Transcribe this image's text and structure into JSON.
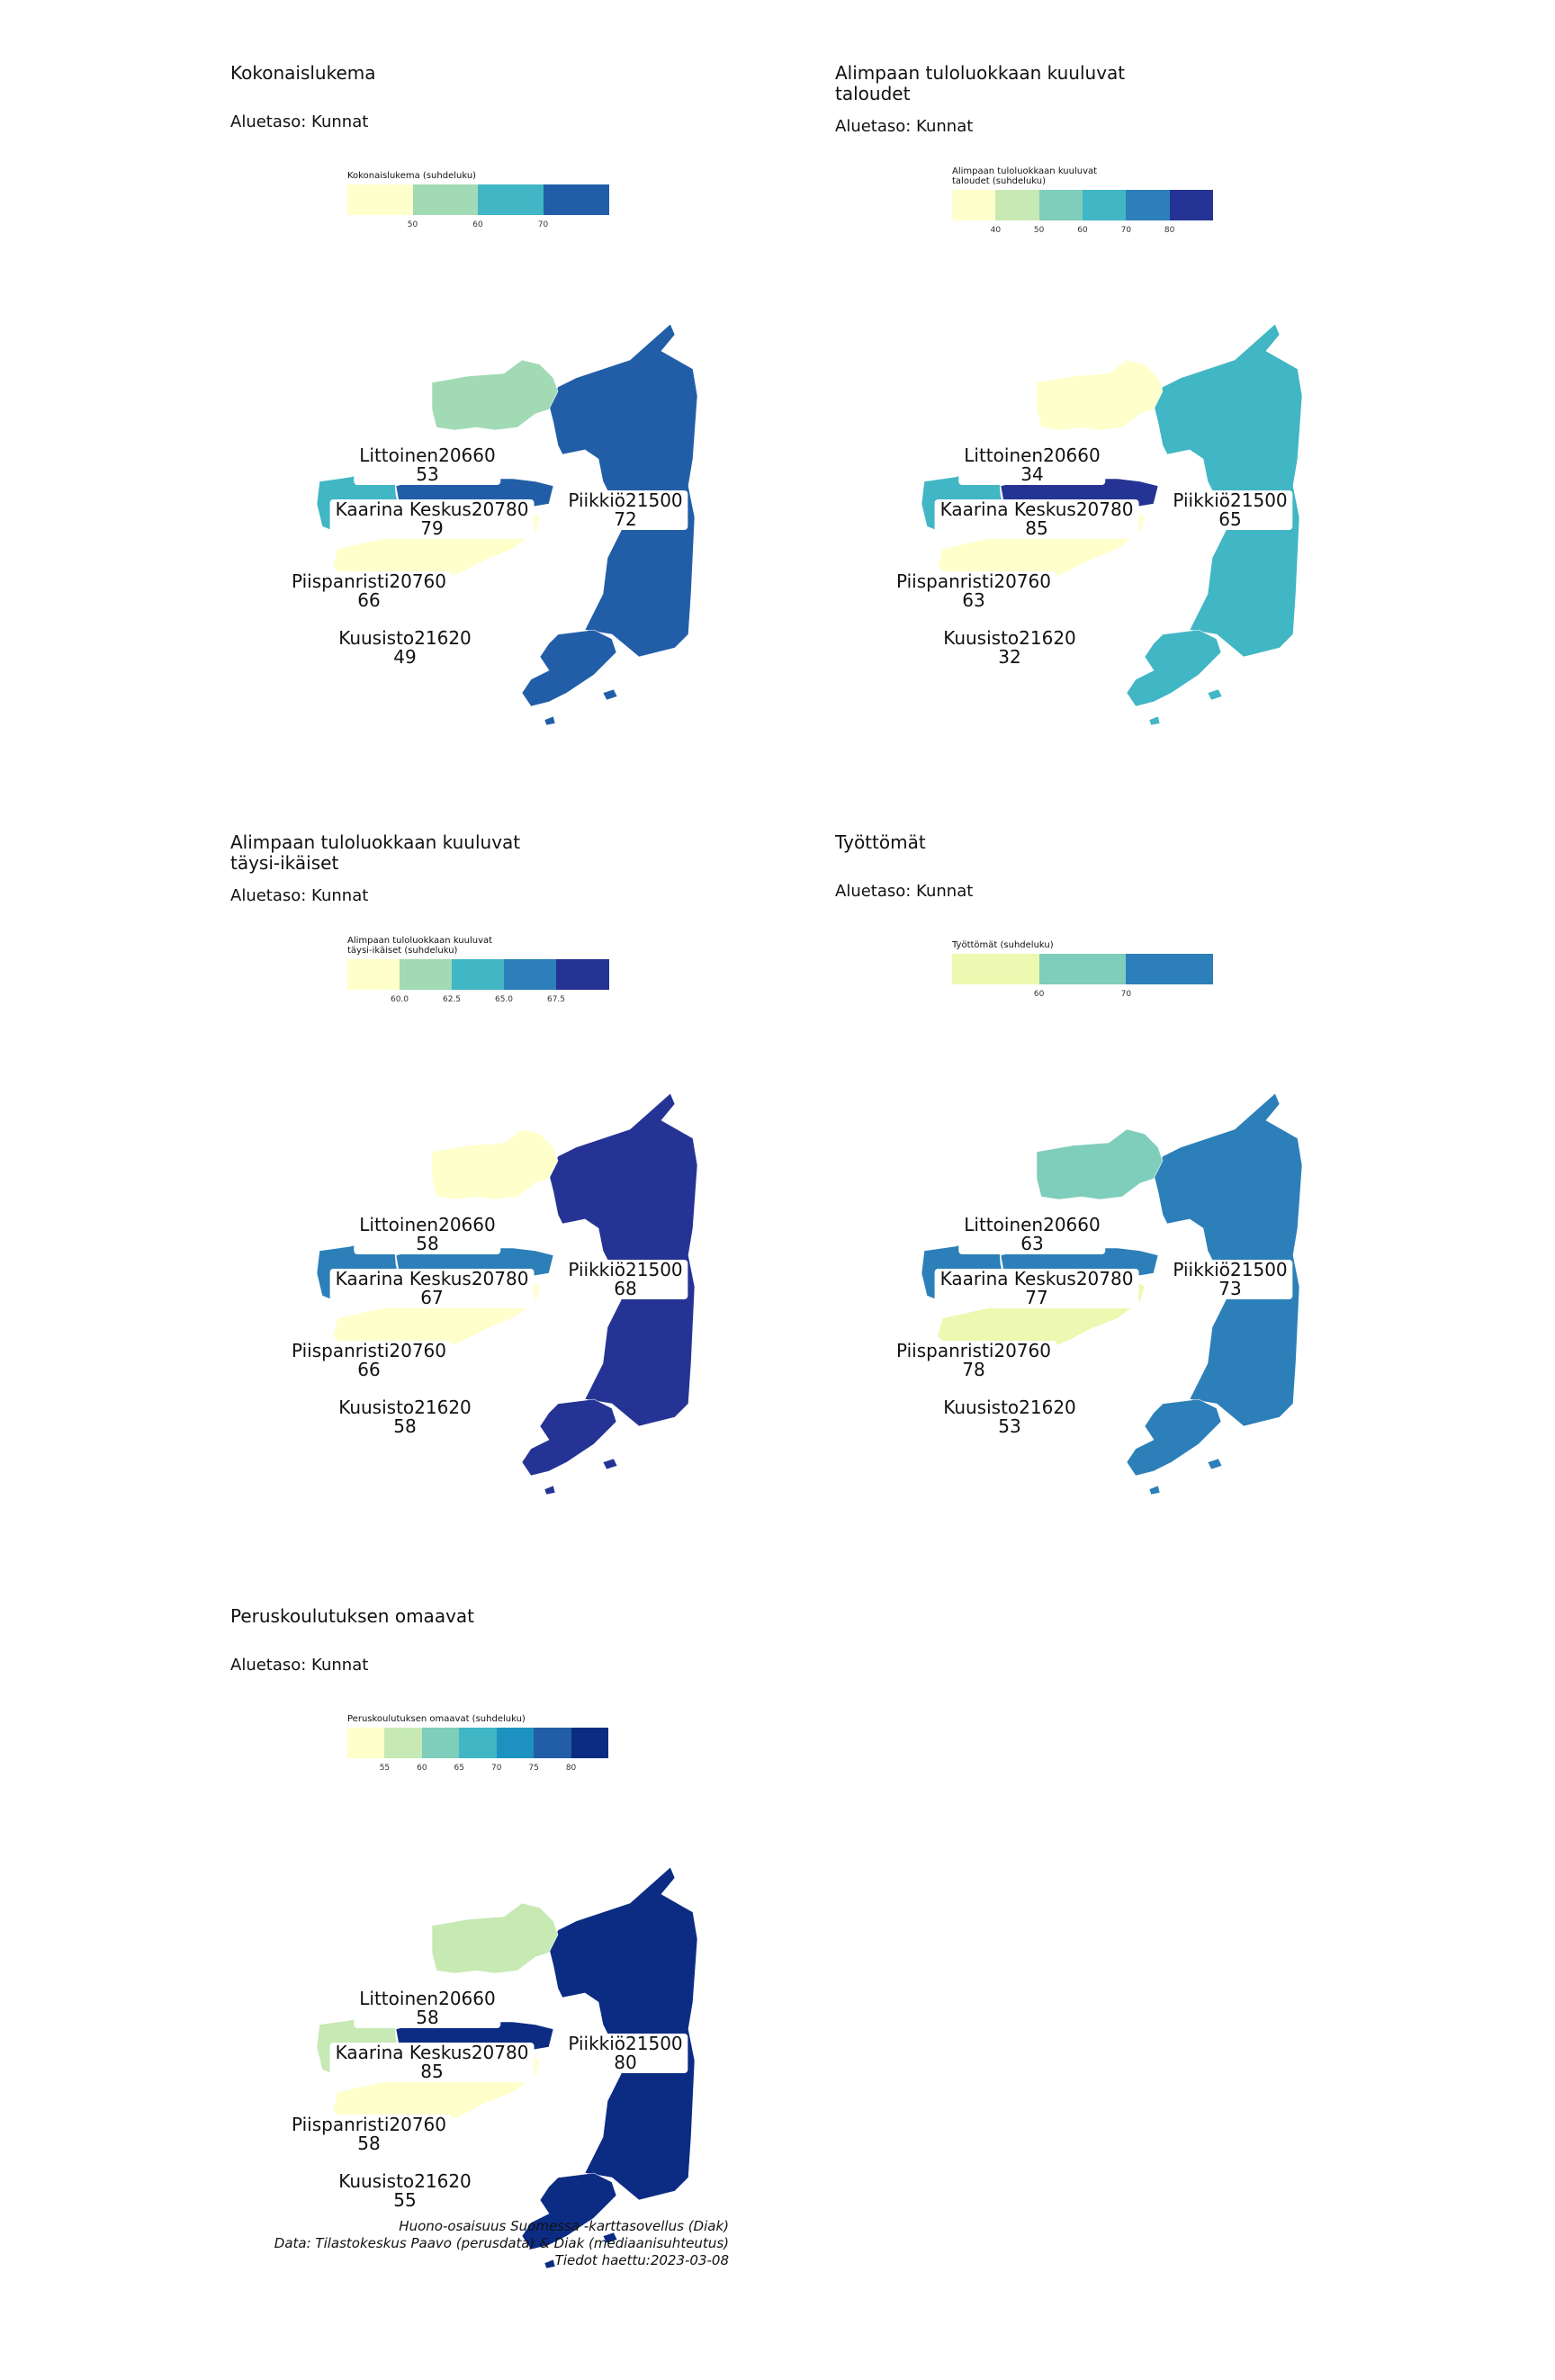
{
  "aluetaso_label": "Aluetaso: Kunnat",
  "panels": [
    {
      "title": "Kokonaislukema",
      "legend_title": "Kokonaislukema (suhdeluku)",
      "legend_colors": [
        "#ffffcc",
        "#a1dab4",
        "#41b6c4",
        "#225ea8"
      ],
      "legend_ticks": [
        "50",
        "60",
        "70"
      ],
      "regions": [
        {
          "name": "Littoinen20660",
          "value": "53",
          "color": "#a1dab4"
        },
        {
          "name": "Kaarina Keskus20780",
          "value": "79",
          "color": "#225ea8"
        },
        {
          "name": "Piikkiö21500",
          "value": "72",
          "color": "#225ea8"
        },
        {
          "name": "Piispanristi20760",
          "value": "66",
          "color": "#41b6c4"
        },
        {
          "name": "Kuusisto21620",
          "value": "49",
          "color": "#ffffcc"
        }
      ]
    },
    {
      "title": "Alimpaan tuloluokkaan kuuluvat\ntaloudet",
      "legend_title": "Alimpaan tuloluokkaan kuuluvat\ntaloudet (suhdeluku)",
      "legend_colors": [
        "#ffffcc",
        "#c7e9b4",
        "#7fcdbb",
        "#41b6c4",
        "#2c7fb8",
        "#253494"
      ],
      "legend_ticks": [
        "40",
        "50",
        "60",
        "70",
        "80"
      ],
      "regions": [
        {
          "name": "Littoinen20660",
          "value": "34",
          "color": "#ffffcc"
        },
        {
          "name": "Kaarina Keskus20780",
          "value": "85",
          "color": "#253494"
        },
        {
          "name": "Piikkiö21500",
          "value": "65",
          "color": "#41b6c4"
        },
        {
          "name": "Piispanristi20760",
          "value": "63",
          "color": "#41b6c4"
        },
        {
          "name": "Kuusisto21620",
          "value": "32",
          "color": "#ffffcc"
        }
      ]
    },
    {
      "title": "Alimpaan tuloluokkaan kuuluvat\ntäysi-ikäiset",
      "legend_title": "Alimpaan tuloluokkaan kuuluvat\ntäysi-ikäiset (suhdeluku)",
      "legend_colors": [
        "#ffffcc",
        "#a1dab4",
        "#41b6c4",
        "#2c7fb8",
        "#253494"
      ],
      "legend_ticks": [
        "60.0",
        "62.5",
        "65.0",
        "67.5"
      ],
      "regions": [
        {
          "name": "Littoinen20660",
          "value": "58",
          "color": "#ffffcc"
        },
        {
          "name": "Kaarina Keskus20780",
          "value": "67",
          "color": "#2c7fb8"
        },
        {
          "name": "Piikkiö21500",
          "value": "68",
          "color": "#253494"
        },
        {
          "name": "Piispanristi20760",
          "value": "66",
          "color": "#2c7fb8"
        },
        {
          "name": "Kuusisto21620",
          "value": "58",
          "color": "#ffffcc"
        }
      ]
    },
    {
      "title": "Työttömät",
      "legend_title": "Työttömät (suhdeluku)",
      "legend_colors": [
        "#edf8b1",
        "#7fcdbb",
        "#2c7fb8"
      ],
      "legend_ticks": [
        "60",
        "70"
      ],
      "regions": [
        {
          "name": "Littoinen20660",
          "value": "63",
          "color": "#7fcdbb"
        },
        {
          "name": "Kaarina Keskus20780",
          "value": "77",
          "color": "#2c7fb8"
        },
        {
          "name": "Piikkiö21500",
          "value": "73",
          "color": "#2c7fb8"
        },
        {
          "name": "Piispanristi20760",
          "value": "78",
          "color": "#2c7fb8"
        },
        {
          "name": "Kuusisto21620",
          "value": "53",
          "color": "#edf8b1"
        }
      ]
    },
    {
      "title": "Peruskoulutuksen omaavat",
      "legend_title": "Peruskoulutuksen omaavat (suhdeluku)",
      "legend_colors": [
        "#ffffcc",
        "#c7e9b4",
        "#7fcdbb",
        "#41b6c4",
        "#1d91c0",
        "#225ea8",
        "#0c2c84"
      ],
      "legend_ticks": [
        "55",
        "60",
        "65",
        "70",
        "75",
        "80"
      ],
      "regions": [
        {
          "name": "Littoinen20660",
          "value": "58",
          "color": "#c7e9b4"
        },
        {
          "name": "Kaarina Keskus20780",
          "value": "85",
          "color": "#0c2c84"
        },
        {
          "name": "Piikkiö21500",
          "value": "80",
          "color": "#0c2c84"
        },
        {
          "name": "Piispanristi20760",
          "value": "58",
          "color": "#c7e9b4"
        },
        {
          "name": "Kuusisto21620",
          "value": "55",
          "color": "#ffffcc"
        }
      ]
    }
  ],
  "caption": {
    "line1": "Huono-osaisuus Suomessa -karttasovellus (Diak)",
    "line2": "Data: Tilastokeskus Paavo (perusdata) & Diak (mediaanisuhteutus)",
    "line3": "Tiedot haettu:2023-03-08"
  }
}
